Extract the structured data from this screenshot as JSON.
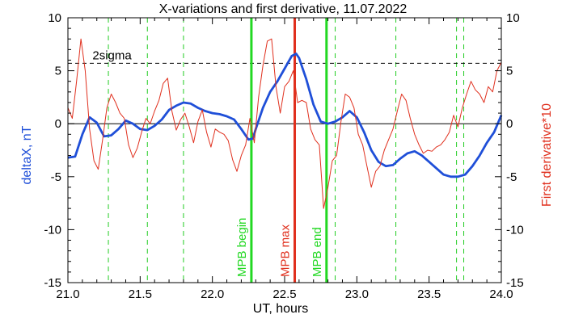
{
  "chart_data": {
    "type": "line",
    "title": "X-variations and first derivative, 11.07.2022",
    "xlabel": "UT, hours",
    "ylabel_left": "deltaX, nT",
    "ylabel_right": "First derivative*10",
    "xlim": [
      21.0,
      24.0
    ],
    "ylim": [
      -15,
      10
    ],
    "x_ticks": [
      "21.0",
      "21.5",
      "22.0",
      "22.5",
      "23.0",
      "23.5",
      "24.0"
    ],
    "y_ticks_left": [
      "10",
      "5",
      "0",
      "-5",
      "-10",
      "-15"
    ],
    "y_ticks_right": [
      "10",
      "5",
      "0",
      "-5",
      "-10",
      "-15"
    ],
    "grid": false,
    "colors": {
      "deltaX": "#1f4fd8",
      "derivative": "#e0301e",
      "mpb_lines": "#22d822",
      "mpb_max": "#e0301e",
      "event_lines": "#22cc22",
      "axes": "#000000"
    },
    "threshold": {
      "label": "2sigma",
      "value": 5.7
    },
    "vertical_markers": [
      {
        "x": 22.27,
        "label": "MPB begin",
        "style": "solid",
        "color": "#22d822"
      },
      {
        "x": 22.57,
        "label": "MPB max",
        "style": "solid",
        "color": "#e0301e"
      },
      {
        "x": 22.79,
        "label": "MPB end",
        "style": "solid",
        "color": "#22d822"
      }
    ],
    "event_lines": [
      21.28,
      21.55,
      21.8,
      22.85,
      23.27,
      23.69,
      23.74
    ],
    "series": [
      {
        "key": "deltaX",
        "x": [
          21.0,
          21.05,
          21.1,
          21.15,
          21.2,
          21.25,
          21.3,
          21.35,
          21.4,
          21.45,
          21.5,
          21.55,
          21.6,
          21.65,
          21.7,
          21.75,
          21.8,
          21.85,
          21.9,
          21.95,
          22.0,
          22.05,
          22.1,
          22.15,
          22.2,
          22.25,
          22.28,
          22.3,
          22.35,
          22.4,
          22.45,
          22.5,
          22.55,
          22.58,
          22.6,
          22.65,
          22.7,
          22.75,
          22.8,
          22.85,
          22.9,
          22.95,
          23.0,
          23.05,
          23.1,
          23.15,
          23.2,
          23.25,
          23.3,
          23.35,
          23.4,
          23.45,
          23.5,
          23.55,
          23.6,
          23.65,
          23.7,
          23.75,
          23.8,
          23.85,
          23.9,
          23.95,
          24.0
        ],
        "values": [
          -3.2,
          -3.1,
          -1.0,
          0.6,
          0.1,
          -1.2,
          -1.1,
          -0.5,
          0.3,
          0.0,
          -0.5,
          -0.6,
          -0.2,
          0.4,
          1.3,
          1.7,
          2.0,
          1.9,
          1.5,
          1.2,
          1.0,
          0.9,
          0.7,
          0.4,
          -0.5,
          -1.5,
          -1.4,
          -0.5,
          1.5,
          3.0,
          4.0,
          5.2,
          6.4,
          6.6,
          6.2,
          4.2,
          1.8,
          0.2,
          0.0,
          0.2,
          0.6,
          1.2,
          0.6,
          -0.8,
          -2.5,
          -3.6,
          -4.0,
          -3.9,
          -3.3,
          -2.8,
          -2.6,
          -3.0,
          -3.6,
          -4.2,
          -4.8,
          -5.0,
          -5.0,
          -4.8,
          -4.0,
          -3.0,
          -1.8,
          -0.8,
          0.8
        ]
      },
      {
        "key": "derivative",
        "x": [
          21.0,
          21.03,
          21.06,
          21.09,
          21.12,
          21.15,
          21.18,
          21.21,
          21.24,
          21.27,
          21.3,
          21.33,
          21.36,
          21.39,
          21.42,
          21.45,
          21.48,
          21.51,
          21.54,
          21.57,
          21.6,
          21.63,
          21.66,
          21.69,
          21.72,
          21.75,
          21.78,
          21.81,
          21.84,
          21.87,
          21.9,
          21.93,
          21.96,
          21.99,
          22.02,
          22.05,
          22.08,
          22.11,
          22.14,
          22.17,
          22.2,
          22.23,
          22.26,
          22.29,
          22.32,
          22.35,
          22.38,
          22.41,
          22.44,
          22.47,
          22.5,
          22.53,
          22.56,
          22.59,
          22.62,
          22.65,
          22.68,
          22.71,
          22.74,
          22.77,
          22.8,
          22.83,
          22.86,
          22.89,
          22.92,
          22.95,
          22.98,
          23.01,
          23.04,
          23.07,
          23.1,
          23.13,
          23.16,
          23.19,
          23.22,
          23.25,
          23.28,
          23.31,
          23.34,
          23.37,
          23.4,
          23.43,
          23.46,
          23.49,
          23.52,
          23.55,
          23.58,
          23.61,
          23.64,
          23.67,
          23.7,
          23.73,
          23.76,
          23.79,
          23.82,
          23.85,
          23.88,
          23.91,
          23.94,
          23.97,
          24.0
        ],
        "values": [
          1.5,
          0.5,
          4.0,
          8.0,
          5.0,
          -0.5,
          -3.5,
          -4.3,
          -1.5,
          1.5,
          2.8,
          2.0,
          1.0,
          0.5,
          -2.0,
          -3.2,
          -2.3,
          -0.8,
          0.5,
          0.0,
          1.2,
          2.2,
          3.8,
          4.3,
          1.2,
          -0.6,
          0.4,
          1.0,
          -0.3,
          -1.8,
          0.2,
          1.3,
          -0.8,
          -2.2,
          -0.5,
          -0.8,
          -1.0,
          -1.6,
          -3.4,
          -4.5,
          -3.0,
          -2.0,
          0.5,
          -1.8,
          2.5,
          5.5,
          7.8,
          8.0,
          3.5,
          1.0,
          3.5,
          4.0,
          5.0,
          2.0,
          2.2,
          2.0,
          -0.5,
          -1.5,
          -2.0,
          -8.0,
          -6.0,
          -3.5,
          -3.0,
          0.2,
          2.8,
          2.5,
          1.5,
          -1.0,
          -2.0,
          -4.0,
          -6.0,
          -4.5,
          -4.0,
          -2.5,
          -1.5,
          -0.5,
          1.2,
          2.8,
          2.2,
          0.5,
          -1.0,
          -2.0,
          -2.8,
          -2.5,
          -2.6,
          -2.2,
          -2.0,
          -1.5,
          -0.8,
          0.8,
          -0.3,
          1.5,
          2.8,
          4.0,
          3.2,
          2.8,
          2.0,
          3.5,
          3.0,
          5.0,
          5.8
        ]
      }
    ]
  }
}
